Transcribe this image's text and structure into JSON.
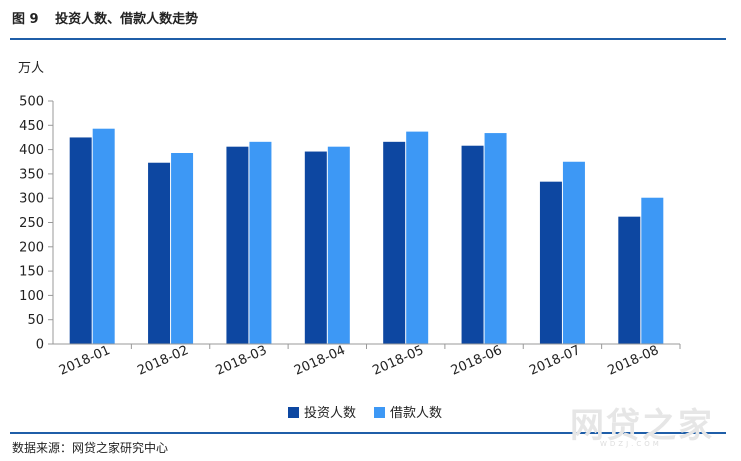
{
  "figure": {
    "label": "图 9",
    "title": "投资人数、借款人数走势"
  },
  "source": "数据来源：网贷之家研究中心",
  "watermark": {
    "text": "网贷之家",
    "sub": "WDZJ.COM"
  },
  "chart_data": {
    "type": "bar",
    "title": "投资人数、借款人数走势",
    "ylabel": "万人",
    "xlabel": "",
    "ylim": [
      0,
      500
    ],
    "yticks": [
      0,
      50,
      100,
      150,
      200,
      250,
      300,
      350,
      400,
      450,
      500
    ],
    "grid": false,
    "legend": "bottom",
    "categories": [
      "2018-01",
      "2018-02",
      "2018-03",
      "2018-04",
      "2018-05",
      "2018-06",
      "2018-07",
      "2018-08"
    ],
    "series": [
      {
        "name": "投资人数",
        "color": "#0d47a1",
        "values": [
          425,
          373,
          406,
          396,
          416,
          408,
          334,
          262
        ]
      },
      {
        "name": "借款人数",
        "color": "#3d98f5",
        "values": [
          443,
          393,
          416,
          406,
          437,
          434,
          375,
          301
        ]
      }
    ]
  }
}
